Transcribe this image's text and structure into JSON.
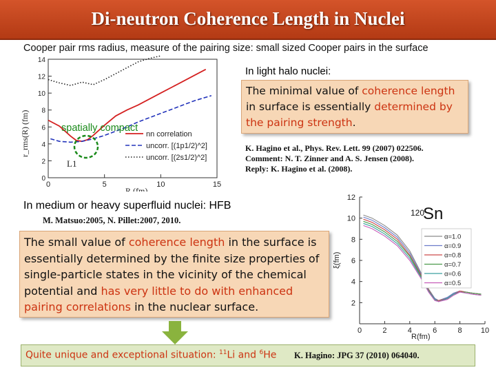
{
  "title": "Di-neutron Coherence Length in Nuclei",
  "subtitle": "Cooper pair rms radius, measure of the pairing size: small sized Cooper pairs in the surface",
  "halo": {
    "heading": "In light halo nuclei:",
    "box_text": {
      "part1": "The minimal value of ",
      "part2": "coherence length",
      "part3": " in surface is essentially ",
      "part4": "determined by the pairing strength",
      "part5": "."
    },
    "refs": [
      "K. Hagino et al., Phys. Rev. Lett. 99 (2007) 022506.",
      "Comment: N. T. Zinner and A. S. Jensen (2008).",
      "Reply: K. Hagino et al. (2008)."
    ]
  },
  "medium": {
    "heading": "In medium or heavy superfluid nuclei: HFB",
    "ref": "M. Matsuo:2005, N. Pillet:2007, 2010.",
    "box_text": {
      "part1": "The small value of ",
      "part2": "coherence length",
      "part3": " in the surface is essentially determined by the finite size properties of single-particle states in the vicinity of the chemical potential and ",
      "part4": "has very little to do with enhanced pairing correlations",
      "part5": " in the nuclear surface."
    }
  },
  "conclusion": {
    "text_prefix": "Quite unique and exceptional situation: ",
    "li_mass": "11",
    "li_symbol": "Li",
    "and": " and ",
    "he_mass": "6",
    "he_symbol": "He",
    "ref": "K. Hagino: JPG 37 (2010) 064040."
  },
  "colors": {
    "title_bg": "#c9461e",
    "highlight": "#cc3311",
    "box_bg": "#f7d7b6",
    "conclusion_bg": "#dfe9c5",
    "arrow": "#8ab33e"
  },
  "chart_data": [
    {
      "type": "line",
      "title": "",
      "xlabel": "R  (fm)",
      "ylabel": "r_rms(R)  (fm)",
      "xlim": [
        0,
        15
      ],
      "ylim": [
        0,
        14
      ],
      "x_ticks": [
        0,
        5,
        10,
        15
      ],
      "y_ticks": [
        0,
        2,
        4,
        6,
        8,
        10,
        12,
        14
      ],
      "annotation": "spatially compact",
      "nucleus_label": "11Li",
      "series": [
        {
          "name": "nn correlation",
          "style": "solid-red",
          "x": [
            0,
            1,
            2,
            2.5,
            3,
            3.5,
            4,
            5,
            6,
            7,
            8,
            9,
            10,
            11,
            12,
            13,
            14
          ],
          "y": [
            6.8,
            6.1,
            4.9,
            4.4,
            4.3,
            4.5,
            5.0,
            6.2,
            7.3,
            8.0,
            8.6,
            9.3,
            10.0,
            10.7,
            11.4,
            12.1,
            12.8
          ]
        },
        {
          "name": "uncorr. [(1p1/2)^2]",
          "style": "dashed-blue",
          "x": [
            0.2,
            1,
            2,
            3,
            4,
            5,
            6,
            7,
            8,
            9,
            10,
            11,
            12,
            13,
            14.5
          ],
          "y": [
            4.6,
            4.3,
            4.2,
            4.3,
            4.6,
            5.0,
            5.5,
            6.0,
            6.6,
            7.1,
            7.6,
            8.1,
            8.6,
            9.1,
            9.7
          ]
        },
        {
          "name": "uncorr. [(2s1/2)^2]",
          "style": "dotted-black",
          "x": [
            0,
            1,
            2,
            3,
            4,
            5,
            6,
            7,
            8,
            9,
            10
          ],
          "y": [
            11.6,
            11.2,
            10.9,
            11.3,
            11.0,
            11.6,
            12.3,
            13.0,
            13.7,
            14.1,
            14.4
          ]
        }
      ]
    },
    {
      "type": "line",
      "title": "120Sn",
      "mass_number": "120",
      "element": "Sn",
      "xlabel": "R(fm)",
      "ylabel": "ξ(fm)",
      "xlim": [
        0,
        10
      ],
      "ylim": [
        0,
        12
      ],
      "x_ticks": [
        0,
        2,
        4,
        6,
        8,
        10
      ],
      "y_ticks": [
        2,
        4,
        6,
        8,
        10,
        12
      ],
      "legend": [
        "α=1.0",
        "α=0.9",
        "α=0.8",
        "α=0.7",
        "α=0.6",
        "α=0.5"
      ],
      "x": [
        0.3,
        1,
        2,
        3,
        4,
        5,
        5.5,
        6,
        6.3,
        7,
        7.5,
        8,
        8.5,
        9,
        9.7
      ],
      "series": [
        {
          "name": "α=1.0",
          "values": [
            10.3,
            10.0,
            9.3,
            8.4,
            6.9,
            4.6,
            3.3,
            2.4,
            2.2,
            2.5,
            2.9,
            3.1,
            3.0,
            2.9,
            2.8
          ]
        },
        {
          "name": "α=0.9",
          "values": [
            10.1,
            9.8,
            9.1,
            8.2,
            6.7,
            4.5,
            3.2,
            2.4,
            2.2,
            2.5,
            2.9,
            3.1,
            3.0,
            2.9,
            2.8
          ]
        },
        {
          "name": "α=0.8",
          "values": [
            9.9,
            9.6,
            8.9,
            8.0,
            6.5,
            4.4,
            3.2,
            2.3,
            2.2,
            2.4,
            2.8,
            3.1,
            3.0,
            2.9,
            2.8
          ]
        },
        {
          "name": "α=0.7",
          "values": [
            9.7,
            9.4,
            8.7,
            7.8,
            6.4,
            4.3,
            3.1,
            2.3,
            2.1,
            2.4,
            2.8,
            3.0,
            3.0,
            2.9,
            2.8
          ]
        },
        {
          "name": "α=0.6",
          "values": [
            9.5,
            9.2,
            8.5,
            7.6,
            6.2,
            4.2,
            3.1,
            2.3,
            2.1,
            2.4,
            2.8,
            3.0,
            2.9,
            2.8,
            2.7
          ]
        },
        {
          "name": "α=0.5",
          "values": [
            9.3,
            9.0,
            8.3,
            7.4,
            6.0,
            4.1,
            3.0,
            2.2,
            2.1,
            2.3,
            2.7,
            3.0,
            2.9,
            2.8,
            2.7
          ]
        }
      ],
      "series_colors": [
        "#8a8a8a",
        "#6a7bc9",
        "#cc4b4b",
        "#4a9a4a",
        "#3aa0a0",
        "#c75bb8"
      ]
    }
  ]
}
